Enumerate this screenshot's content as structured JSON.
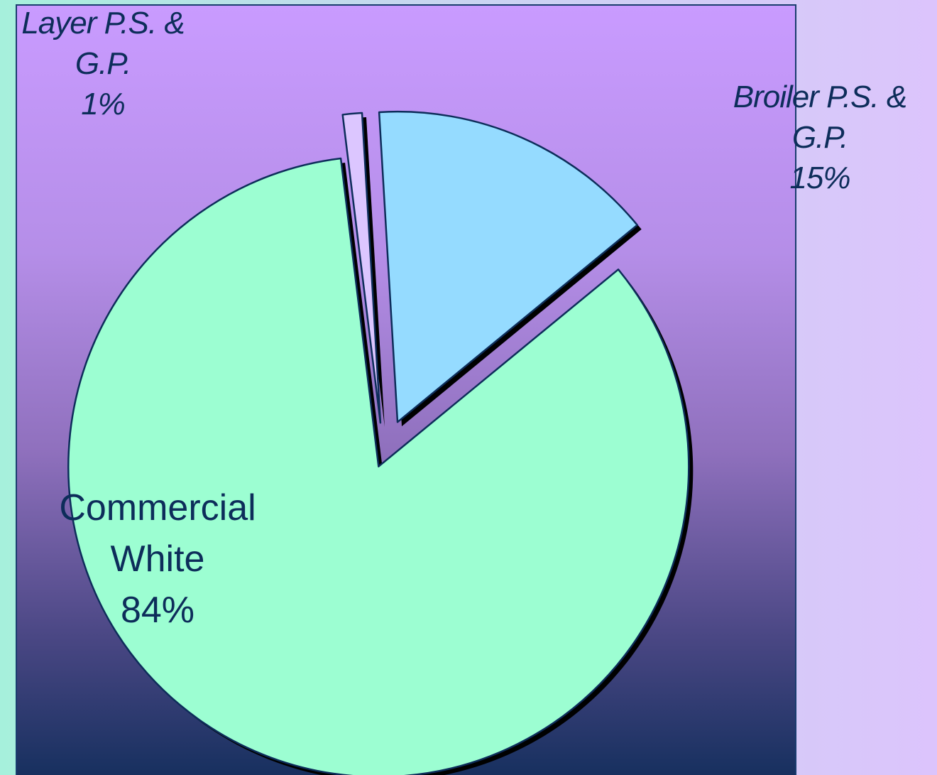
{
  "chart_data": {
    "type": "pie",
    "title": "",
    "start_angle_deg": -3.4,
    "direction": "clockwise",
    "slices": [
      {
        "name": "Broiler P.S. & G.P.",
        "label_lines": [
          "Broiler P.S. &",
          "G.P.",
          "15%"
        ],
        "value": 15,
        "percent_label": "15%",
        "color": "#95dbff",
        "exploded": true
      },
      {
        "name": "Commercial White",
        "label_lines": [
          "Commercial",
          "White",
          "84%"
        ],
        "value": 84,
        "percent_label": "84%",
        "color": "#9cfed2",
        "exploded": true
      },
      {
        "name": "Layer P.S. & G.P.",
        "label_lines": [
          "Layer P.S. &",
          "G.P.",
          "1%"
        ],
        "value": 1,
        "percent_label": "1%",
        "color": "#dcc6ff",
        "exploded": true
      }
    ],
    "outline_color": "#0d2d5a",
    "shadow_color": "#000000"
  }
}
